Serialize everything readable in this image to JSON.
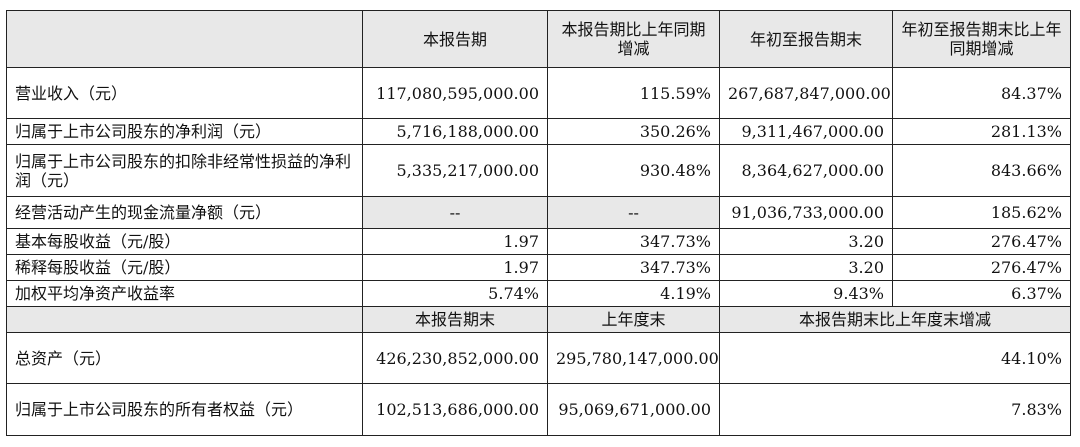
{
  "header": {
    "col1": "本报告期",
    "col2": "本报告期比上年同期增减",
    "col3": "年初至报告期末",
    "col4": "年初至报告期末比上年同期增减"
  },
  "rows": [
    {
      "label": "营业收入（元）",
      "v1": "117,080,595,000.00",
      "v2": "115.59%",
      "v3": "267,687,847,000.00",
      "v4": "84.37%"
    },
    {
      "label": "归属于上市公司股东的净利润（元）",
      "v1": "5,716,188,000.00",
      "v2": "350.26%",
      "v3": "9,311,467,000.00",
      "v4": "281.13%"
    },
    {
      "label": "归属于上市公司股东的扣除非经常性损益的净利润（元）",
      "v1": "5,335,217,000.00",
      "v2": "930.48%",
      "v3": "8,364,627,000.00",
      "v4": "843.66%"
    },
    {
      "label": "经营活动产生的现金流量净额（元）",
      "v1": "--",
      "v2": "--",
      "v3": "91,036,733,000.00",
      "v4": "185.62%"
    },
    {
      "label": "基本每股收益（元/股）",
      "v1": "1.97",
      "v2": "347.73%",
      "v3": "3.20",
      "v4": "276.47%"
    },
    {
      "label": "稀释每股收益（元/股）",
      "v1": "1.97",
      "v2": "347.73%",
      "v3": "3.20",
      "v4": "276.47%"
    },
    {
      "label": "加权平均净资产收益率",
      "v1": "5.74%",
      "v2": "4.19%",
      "v3": "9.43%",
      "v4": "6.37%"
    }
  ],
  "header2": {
    "col1": "本报告期末",
    "col2": "上年度末",
    "col3": "本报告期末比上年度末增减"
  },
  "rows2": [
    {
      "label": "总资产（元）",
      "v1": "426,230,852,000.00",
      "v2": "295,780,147,000.00",
      "v3": "44.10%"
    },
    {
      "label": "归属于上市公司股东的所有者权益（元）",
      "v1": "102,513,686,000.00",
      "v2": "95,069,671,000.00",
      "v3": "7.83%"
    }
  ]
}
